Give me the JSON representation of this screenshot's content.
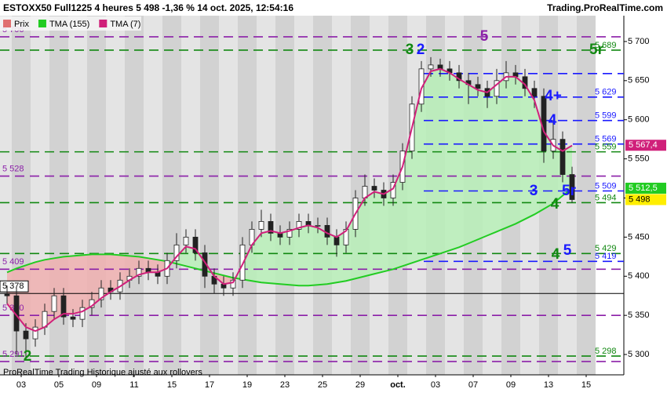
{
  "header": {
    "title": "ESTOXX50 Full1225 4 heures 5 498 -1,36 % 14 oct. 2025, 12:54:16",
    "source": "Trading.ProRealTime.com"
  },
  "footer": "ProRealTime Trading  Historique ajusté aux rollovers",
  "chart_data": {
    "type": "candlestick",
    "categories": [
      null,
      "03",
      null,
      null,
      null,
      "05",
      null,
      null,
      null,
      "09",
      null,
      null,
      null,
      "11",
      null,
      null,
      null,
      "15",
      null,
      null,
      null,
      "17",
      null,
      null,
      null,
      "19",
      null,
      null,
      null,
      "23",
      null,
      null,
      null,
      "25",
      null,
      null,
      null,
      "29",
      null,
      null,
      null,
      "oct.",
      null,
      null,
      null,
      "03",
      null,
      null,
      null,
      "07",
      null,
      null,
      null,
      "09",
      null,
      null,
      null,
      "13",
      null,
      null,
      null,
      "15",
      null
    ],
    "ylim": [
      5274,
      5733
    ],
    "yticks": [
      {
        "value": 5300,
        "label": "5 300"
      },
      {
        "value": 5350,
        "label": "5 350"
      },
      {
        "value": 5400,
        "label": "5 400"
      },
      {
        "value": 5450,
        "label": "5 450"
      },
      {
        "value": 5500,
        "label": "5 500"
      },
      {
        "value": 5550,
        "label": "5 550"
      },
      {
        "value": 5600,
        "label": "5 600"
      },
      {
        "value": 5650,
        "label": "5 650"
      },
      {
        "value": 5700,
        "label": "5 700"
      }
    ],
    "series": [
      {
        "name": "Prix",
        "color": "#e07070",
        "open": [
          5378,
          5375,
          5330,
          5320,
          5335,
          5355,
          5375,
          5348,
          5345,
          5360,
          5370,
          5385,
          5380,
          5395,
          5400,
          5410,
          5405,
          5400,
          5420,
          5440,
          5450,
          5430,
          5400,
          5390,
          5385,
          5395,
          5440,
          5460,
          5470,
          5455,
          5450,
          5460,
          5470,
          5465,
          5465,
          5450,
          5440,
          5460,
          5500,
          5515,
          5510,
          5500,
          5520,
          5560,
          5620,
          5665,
          5670,
          5665,
          5660,
          5650,
          5645,
          5640,
          5630,
          5650,
          5660,
          5655,
          5640,
          5630,
          5560,
          5575,
          5530,
          null,
          null
        ],
        "high": [
          5388,
          5385,
          5340,
          5345,
          5365,
          5385,
          5385,
          5358,
          5370,
          5380,
          5395,
          5395,
          5405,
          5410,
          5420,
          5420,
          5415,
          5430,
          5455,
          5460,
          5460,
          5440,
          5410,
          5400,
          5405,
          5450,
          5470,
          5485,
          5480,
          5465,
          5470,
          5480,
          5480,
          5475,
          5475,
          5460,
          5470,
          5510,
          5530,
          5525,
          5520,
          5530,
          5570,
          5630,
          5675,
          5680,
          5678,
          5675,
          5670,
          5660,
          5655,
          5650,
          5665,
          5675,
          5670,
          5665,
          5650,
          5640,
          5600,
          5585,
          5540,
          null,
          null
        ],
        "low": [
          5365,
          5300,
          5296,
          5310,
          5325,
          5345,
          5338,
          5335,
          5335,
          5350,
          5360,
          5370,
          5370,
          5385,
          5390,
          5395,
          5390,
          5390,
          5410,
          5430,
          5420,
          5385,
          5378,
          5375,
          5375,
          5385,
          5430,
          5450,
          5445,
          5440,
          5440,
          5450,
          5455,
          5455,
          5440,
          5425,
          5430,
          5450,
          5490,
          5500,
          5490,
          5490,
          5510,
          5550,
          5610,
          5655,
          5655,
          5650,
          5640,
          5620,
          5630,
          5615,
          5620,
          5640,
          5645,
          5630,
          5615,
          5545,
          5550,
          5520,
          5494,
          null,
          null
        ],
        "close": [
          5375,
          5330,
          5320,
          5335,
          5355,
          5375,
          5348,
          5345,
          5360,
          5370,
          5385,
          5380,
          5395,
          5400,
          5410,
          5405,
          5400,
          5420,
          5440,
          5450,
          5430,
          5400,
          5390,
          5385,
          5395,
          5440,
          5460,
          5470,
          5455,
          5450,
          5460,
          5470,
          5465,
          5465,
          5450,
          5440,
          5460,
          5500,
          5515,
          5510,
          5500,
          5520,
          5560,
          5620,
          5665,
          5670,
          5665,
          5660,
          5650,
          5645,
          5640,
          5630,
          5650,
          5660,
          5655,
          5640,
          5630,
          5560,
          5575,
          5530,
          5498,
          null,
          null
        ]
      },
      {
        "name": "TMA (155)",
        "color": "#22cc22",
        "values": [
          5405,
          5410,
          5414,
          5418,
          5421,
          5423,
          5425,
          5426,
          5427,
          5428,
          5428,
          5428,
          5427,
          5426,
          5425,
          5423,
          5421,
          5419,
          5416,
          5413,
          5410,
          5407,
          5404,
          5401,
          5398,
          5396,
          5394,
          5392,
          5391,
          5390,
          5389,
          5388,
          5388,
          5389,
          5390,
          5392,
          5394,
          5397,
          5400,
          5403,
          5406,
          5409,
          5413,
          5417,
          5421,
          5425,
          5429,
          5433,
          5437,
          5442,
          5447,
          5452,
          5457,
          5462,
          5467,
          5473,
          5479,
          5486,
          5493,
          5503,
          5512,
          null,
          null
        ]
      },
      {
        "name": "TMA (7)",
        "color": "#d0207a",
        "values": [
          5365,
          5350,
          5335,
          5330,
          5335,
          5345,
          5352,
          5352,
          5355,
          5362,
          5372,
          5380,
          5387,
          5395,
          5402,
          5405,
          5405,
          5410,
          5425,
          5438,
          5435,
          5418,
          5400,
          5390,
          5392,
          5415,
          5440,
          5455,
          5458,
          5455,
          5458,
          5462,
          5465,
          5462,
          5455,
          5450,
          5458,
          5480,
          5500,
          5508,
          5505,
          5512,
          5540,
          5590,
          5640,
          5662,
          5665,
          5660,
          5652,
          5645,
          5638,
          5635,
          5645,
          5655,
          5655,
          5645,
          5625,
          5585,
          5567,
          5560,
          5567,
          null,
          null
        ]
      }
    ],
    "levels": [
      {
        "value": 5706,
        "label": "5 706",
        "color": "#8b1fa8",
        "side": "left"
      },
      {
        "value": 5689,
        "label": "5 689",
        "color": "#118811",
        "side": "right"
      },
      {
        "value": 5659,
        "color": "#1a1aff"
      },
      {
        "value": 5629,
        "label": "5 629",
        "color": "#1a1aff",
        "side": "right"
      },
      {
        "value": 5599,
        "label": "5 599",
        "color": "#1a1aff",
        "side": "right"
      },
      {
        "value": 5569,
        "label": "5 569",
        "color": "#1a1aff",
        "side": "right"
      },
      {
        "value": 5559,
        "label": "5 559",
        "color": "#118811",
        "side": "right"
      },
      {
        "value": 5528,
        "label": "5 528",
        "color": "#8b1fa8",
        "side": "left"
      },
      {
        "value": 5509,
        "label": "5 509",
        "color": "#1a1aff",
        "side": "right"
      },
      {
        "value": 5494,
        "label": "5 494",
        "color": "#118811",
        "side": "right"
      },
      {
        "value": 5429,
        "label": "5 429",
        "color": "#118811",
        "side": "right"
      },
      {
        "value": 5419,
        "label": "5 419",
        "color": "#1a1aff",
        "side": "right"
      },
      {
        "value": 5409,
        "label": "5 409",
        "color": "#8b1fa8",
        "side": "left"
      },
      {
        "value": 5378,
        "label": "5 378",
        "color": "#000000",
        "side": "left",
        "solid": true
      },
      {
        "value": 5350,
        "label": "5 350",
        "color": "#8b1fa8",
        "side": "left"
      },
      {
        "value": 5298,
        "label": "5 298",
        "color": "#118811",
        "side": "right"
      },
      {
        "value": 5291,
        "label": "5 291",
        "color": "#8b1fa8",
        "side": "left"
      }
    ],
    "price_boxes": [
      {
        "value": 5567.4,
        "label": "5 567,4",
        "color": "#d0207a"
      },
      {
        "value": 5512.5,
        "label": "5 512,5",
        "color": "#22cc22"
      },
      {
        "value": 5498,
        "label": "5 498",
        "color": "#ffee00"
      }
    ],
    "annotations": [
      {
        "text": "3",
        "color": "#118811"
      },
      {
        "text": "2",
        "color": "#1a1aff"
      },
      {
        "text": "5",
        "color": "#8b1fa8"
      },
      {
        "text": "5r",
        "color": "#118811"
      },
      {
        "text": "4+",
        "color": "#1a1aff"
      },
      {
        "text": "4",
        "color": "#1a1aff"
      },
      {
        "text": "3",
        "color": "#1a1aff"
      },
      {
        "text": "5r",
        "color": "#1a1aff"
      },
      {
        "text": "4",
        "color": "#118811"
      },
      {
        "text": "4",
        "color": "#118811"
      },
      {
        "text": "5",
        "color": "#1a1aff"
      },
      {
        "text": "2",
        "color": "#118811"
      }
    ]
  }
}
